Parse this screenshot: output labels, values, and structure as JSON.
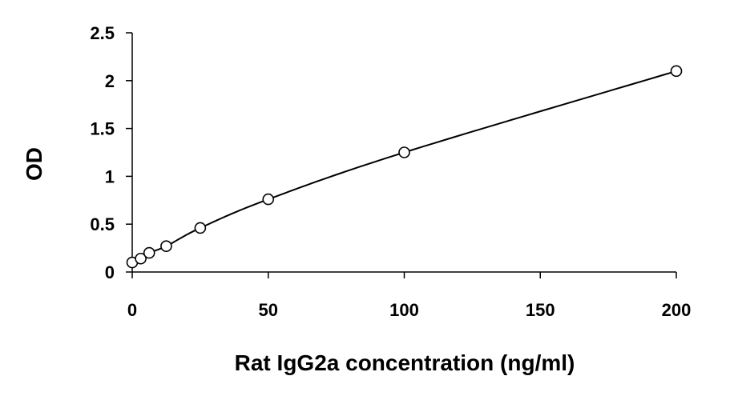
{
  "chart_data": {
    "type": "scatter",
    "title": "",
    "xlabel": "Rat IgG2a concentration (ng/ml)",
    "ylabel": "OD",
    "xlim": [
      0,
      200
    ],
    "ylim": [
      0,
      2.5
    ],
    "xticks": [
      0,
      50,
      100,
      150,
      200
    ],
    "xtick_labels": [
      "0",
      "50",
      "100",
      "150",
      "200"
    ],
    "yticks": [
      0,
      0.5,
      1,
      1.5,
      2,
      2.5
    ],
    "ytick_labels": [
      "0",
      "0.5",
      "1",
      "1.5",
      "2",
      "2.5"
    ],
    "grid": false,
    "legend": "none",
    "series": [
      {
        "x": [
          0,
          3.125,
          6.25,
          12.5,
          25,
          50,
          100,
          200
        ],
        "y": [
          0.1,
          0.14,
          0.2,
          0.27,
          0.46,
          0.76,
          1.25,
          2.1
        ],
        "marker": "open-circle",
        "trendline": "smooth-curve"
      }
    ],
    "colors": {
      "marks": "#000000",
      "background": "#ffffff"
    }
  }
}
